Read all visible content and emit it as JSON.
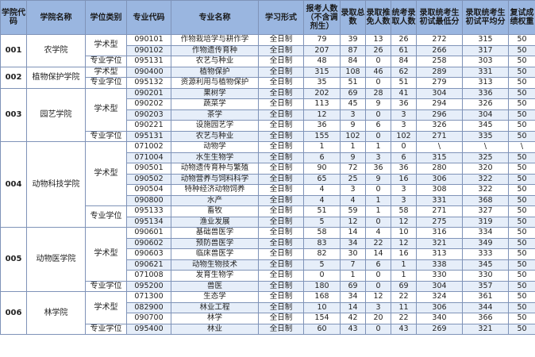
{
  "headers": [
    "学院代码",
    "学院名称",
    "学位类别",
    "专业代码",
    "专业名称",
    "学习形式",
    "报考人数（不含调剂生）",
    "录取总数",
    "录取推免人数",
    "统考录取人数",
    "录取统考生初试最低分",
    "录取统考生初试平均分",
    "复试成绩权重"
  ],
  "colleges": [
    {
      "code": "001",
      "name": "农学院",
      "groups": [
        {
          "category": "学术型",
          "rows": [
            [
              "090101",
              "作物栽培学与耕作学",
              "全日制",
              "79",
              "39",
              "13",
              "26",
              "272",
              "315",
              "50"
            ],
            [
              "090102",
              "作物遗传育种",
              "全日制",
              "207",
              "87",
              "26",
              "61",
              "266",
              "317",
              "50"
            ]
          ]
        },
        {
          "category": "专业学位",
          "rows": [
            [
              "095131",
              "农艺与种业",
              "全日制",
              "48",
              "84",
              "0",
              "84",
              "258",
              "303",
              "50"
            ]
          ]
        }
      ]
    },
    {
      "code": "002",
      "name": "植物保护学院",
      "groups": [
        {
          "category": "学术型",
          "rows": [
            [
              "090400",
              "植物保护",
              "全日制",
              "315",
              "108",
              "46",
              "62",
              "289",
              "331",
              "50"
            ]
          ]
        },
        {
          "category": "专业学位",
          "rows": [
            [
              "095132",
              "资源利用与植物保护",
              "全日制",
              "35",
              "51",
              "0",
              "51",
              "279",
              "313",
              "50"
            ]
          ]
        }
      ]
    },
    {
      "code": "003",
      "name": "园艺学院",
      "groups": [
        {
          "category": "学术型",
          "rows": [
            [
              "090201",
              "果树学",
              "全日制",
              "202",
              "69",
              "28",
              "41",
              "304",
              "336",
              "50"
            ],
            [
              "090202",
              "蔬菜学",
              "全日制",
              "113",
              "45",
              "9",
              "36",
              "294",
              "326",
              "50"
            ],
            [
              "090203",
              "茶学",
              "全日制",
              "12",
              "3",
              "0",
              "3",
              "296",
              "304",
              "50"
            ],
            [
              "090221",
              "设施园艺学",
              "全日制",
              "36",
              "9",
              "6",
              "3",
              "326",
              "345",
              "50"
            ]
          ]
        },
        {
          "category": "专业学位",
          "rows": [
            [
              "095131",
              "农艺与种业",
              "全日制",
              "155",
              "102",
              "0",
              "102",
              "271",
              "335",
              "50"
            ]
          ]
        }
      ]
    },
    {
      "code": "004",
      "name": "动物科技学院",
      "groups": [
        {
          "category": "学术型",
          "rows": [
            [
              "071002",
              "动物学",
              "全日制",
              "1",
              "1",
              "1",
              "0",
              "\\",
              "\\",
              "\\"
            ],
            [
              "071004",
              "水生生物学",
              "全日制",
              "6",
              "9",
              "3",
              "6",
              "315",
              "325",
              "50"
            ],
            [
              "090501",
              "动物遗传育种与繁殖",
              "全日制",
              "90",
              "72",
              "36",
              "36",
              "280",
              "320",
              "50"
            ],
            [
              "090502",
              "动物营养与饲料科学",
              "全日制",
              "65",
              "25",
              "9",
              "16",
              "306",
              "322",
              "50"
            ],
            [
              "090504",
              "特种经济动物饲养",
              "全日制",
              "4",
              "3",
              "0",
              "3",
              "308",
              "322",
              "50"
            ],
            [
              "090800",
              "水产",
              "全日制",
              "4",
              "4",
              "1",
              "3",
              "331",
              "368",
              "50"
            ]
          ]
        },
        {
          "category": "专业学位",
          "rows": [
            [
              "095133",
              "畜牧",
              "全日制",
              "51",
              "59",
              "1",
              "58",
              "271",
              "327",
              "50"
            ],
            [
              "095134",
              "渔业发展",
              "全日制",
              "5",
              "12",
              "0",
              "12",
              "275",
              "319",
              "50"
            ]
          ]
        }
      ]
    },
    {
      "code": "005",
      "name": "动物医学院",
      "groups": [
        {
          "category": "学术型",
          "rows": [
            [
              "090601",
              "基础兽医学",
              "全日制",
              "58",
              "14",
              "4",
              "10",
              "316",
              "334",
              "50"
            ],
            [
              "090602",
              "预防兽医学",
              "全日制",
              "83",
              "34",
              "22",
              "12",
              "321",
              "349",
              "50"
            ],
            [
              "090603",
              "临床兽医学",
              "全日制",
              "82",
              "30",
              "14",
              "16",
              "313",
              "333",
              "50"
            ],
            [
              "090621",
              "动物生物技术",
              "全日制",
              "5",
              "7",
              "6",
              "1",
              "338",
              "345",
              "50"
            ],
            [
              "071008",
              "发育生物学",
              "全日制",
              "0",
              "1",
              "0",
              "1",
              "330",
              "330",
              "50"
            ]
          ]
        },
        {
          "category": "专业学位",
          "rows": [
            [
              "095200",
              "兽医",
              "全日制",
              "180",
              "69",
              "0",
              "69",
              "304",
              "357",
              "50"
            ]
          ]
        }
      ]
    },
    {
      "code": "006",
      "name": "林学院",
      "groups": [
        {
          "category": "学术型",
          "rows": [
            [
              "071300",
              "生态学",
              "全日制",
              "168",
              "34",
              "12",
              "22",
              "324",
              "361",
              "50"
            ],
            [
              "082900",
              "林业工程",
              "全日制",
              "10",
              "14",
              "3",
              "11",
              "306",
              "344",
              "50"
            ],
            [
              "090700",
              "林学",
              "全日制",
              "154",
              "42",
              "20",
              "22",
              "340",
              "366",
              "50"
            ]
          ]
        },
        {
          "category": "专业学位",
          "rows": [
            [
              "095400",
              "林业",
              "全日制",
              "60",
              "43",
              "0",
              "43",
              "269",
              "321",
              "50"
            ]
          ]
        }
      ]
    }
  ]
}
